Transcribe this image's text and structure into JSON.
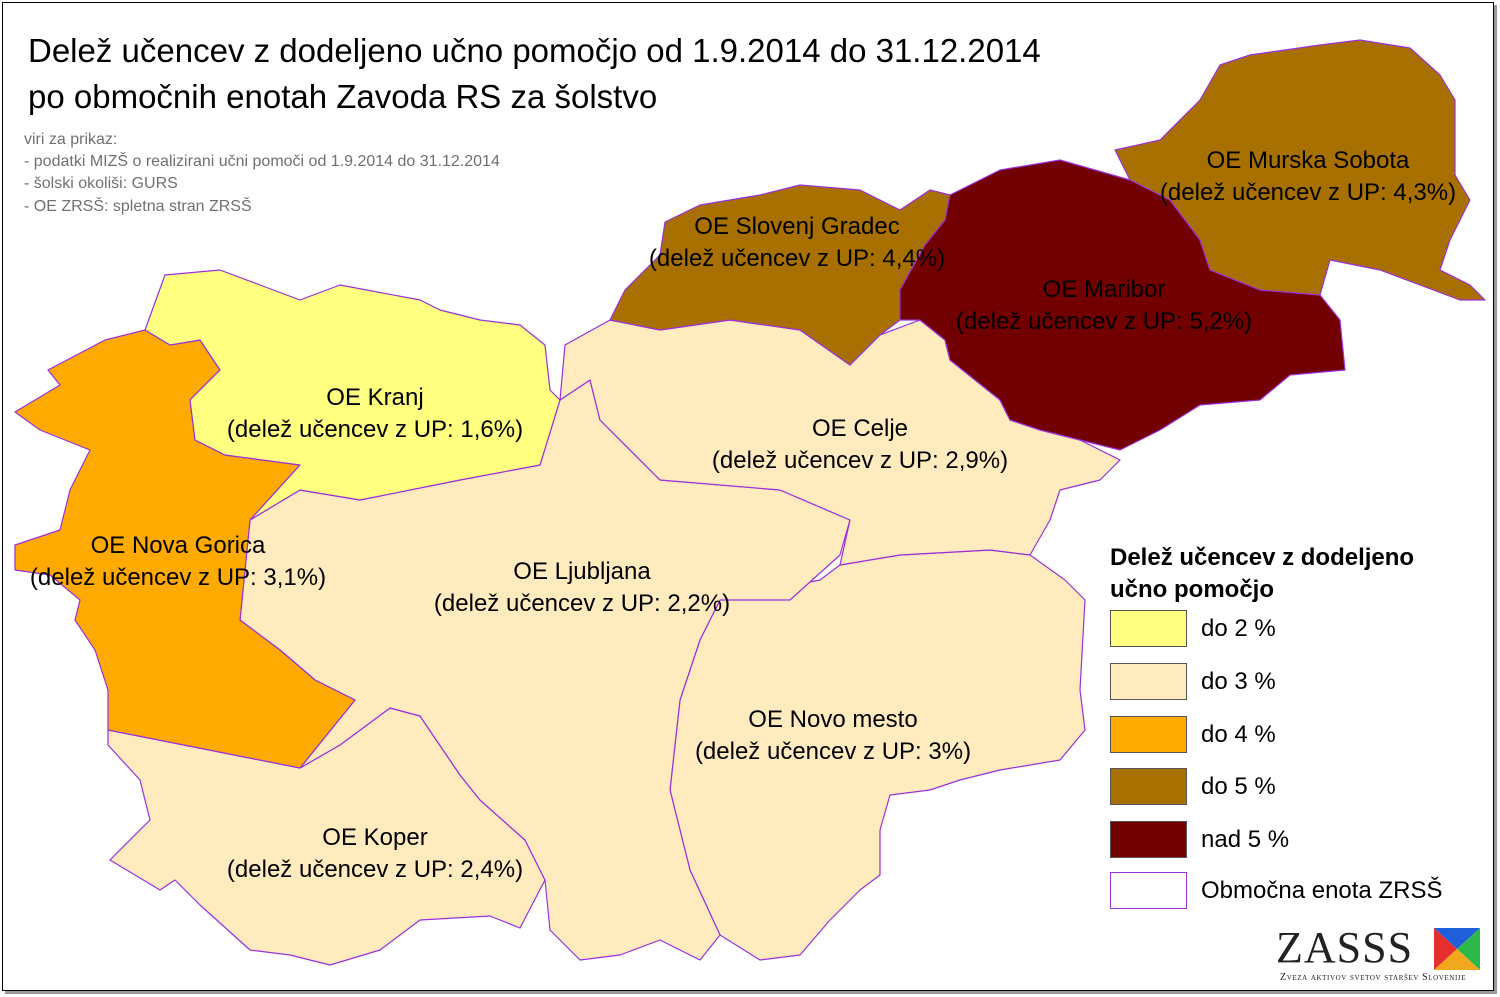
{
  "title_line1": "Delež učencev z dodeljeno učno pomočjo od 1.9.2014 do 31.12.2014",
  "title_line2": "po območnih enotah Zavoda RS za šolstvo",
  "sources": [
    "viri za prikaz:",
    "- podatki MIZŠ o realizirani učni pomoči od 1.9.2014 do 31.12.2014",
    "- šolski okoliši: GURS",
    "- OE ZRSŠ: spletna stran ZRSŠ"
  ],
  "regions": [
    {
      "name": "OE Kranj",
      "value": "(delež učencev z UP: 1,6%)",
      "share_pct": 1.6,
      "color": "#ffff80"
    },
    {
      "name": "OE Nova Gorica",
      "value": "(delež učencev z UP: 3,1%)",
      "share_pct": 3.1,
      "color": "#ffaa00"
    },
    {
      "name": "OE Ljubljana",
      "value": "(delež učencev z UP: 2,2%)",
      "share_pct": 2.2,
      "color": "#ffebbe"
    },
    {
      "name": "OE Koper",
      "value": "(delež učencev z UP: 2,4%)",
      "share_pct": 2.4,
      "color": "#ffebbe"
    },
    {
      "name": "OE Novo mesto",
      "value": "(delež učencev z UP: 3%)",
      "share_pct": 3.0,
      "color": "#ffebbe"
    },
    {
      "name": "OE Celje",
      "value": "(delež učencev z UP: 2,9%)",
      "share_pct": 2.9,
      "color": "#ffebbe"
    },
    {
      "name": "OE Slovenj Gradec",
      "value": "(delež učencev z UP: 4,4%)",
      "share_pct": 4.4,
      "color": "#a87000"
    },
    {
      "name": "OE Maribor",
      "value": "(delež učencev z UP: 5,2%)",
      "share_pct": 5.2,
      "color": "#730000"
    },
    {
      "name": "OE Murska Sobota",
      "value": "(delež učencev z UP: 4,3%)",
      "share_pct": 4.3,
      "color": "#a87000"
    }
  ],
  "legend": {
    "title_line1": "Delež učencev z dodeljeno",
    "title_line2": "učno pomočjo",
    "items": [
      {
        "label": "do 2 %",
        "color": "#ffff80"
      },
      {
        "label": "do 3 %",
        "color": "#ffebbe"
      },
      {
        "label": "do 4 %",
        "color": "#ffaa00"
      },
      {
        "label": "do 5 %",
        "color": "#a87000"
      },
      {
        "label": "nad 5 %",
        "color": "#730000"
      },
      {
        "label": "Območna enota ZRSŠ",
        "color": "#ffffff",
        "border": "#9b30d9"
      }
    ]
  },
  "logo": {
    "text": "ZASSS",
    "subtitle": "Zveza aktivov svetov staršev Slovenije"
  },
  "boundary_color": "#9b30d9"
}
